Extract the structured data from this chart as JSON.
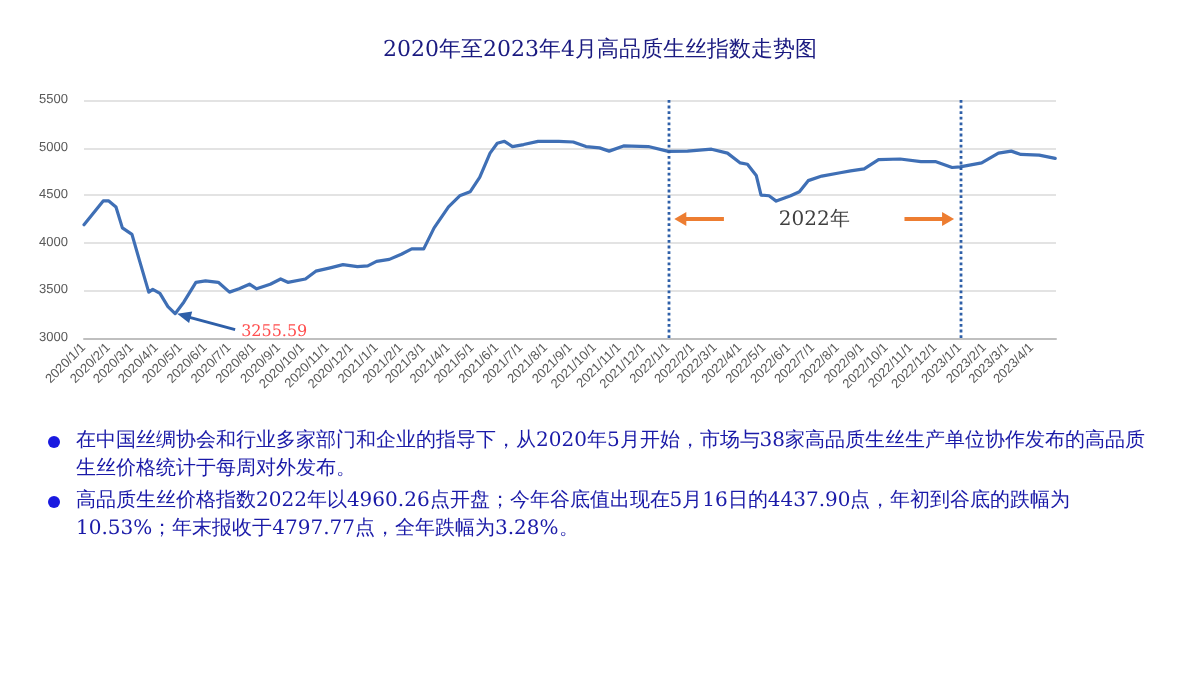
{
  "chart_data": {
    "type": "line",
    "title": "2020年至2023年4月高品质生丝指数走势图",
    "x": [
      "2020-01-01",
      "2020-01-25",
      "2020-02-01",
      "2020-02-10",
      "2020-02-18",
      "2020-03-01",
      "2020-03-10",
      "2020-03-22",
      "2020-03-27",
      "2020-04-05",
      "2020-04-15",
      "2020-04-24",
      "2020-05-05",
      "2020-05-20",
      "2020-06-01",
      "2020-06-17",
      "2020-07-01",
      "2020-07-13",
      "2020-07-26",
      "2020-08-04",
      "2020-08-21",
      "2020-09-03",
      "2020-09-12",
      "2020-10-04",
      "2020-10-17",
      "2020-11-04",
      "2020-11-20",
      "2020-12-08",
      "2020-12-21",
      "2021-01-01",
      "2021-01-17",
      "2021-02-01",
      "2021-02-14",
      "2021-03-01",
      "2021-03-14",
      "2021-04-01",
      "2021-04-15",
      "2021-04-28",
      "2021-05-10",
      "2021-05-23",
      "2021-06-01",
      "2021-06-10",
      "2021-06-20",
      "2021-07-04",
      "2021-07-22",
      "2021-08-17",
      "2021-09-04",
      "2021-09-20",
      "2021-10-07",
      "2021-10-19",
      "2021-11-06",
      "2021-12-07",
      "2022-01-01",
      "2022-01-25",
      "2022-02-24",
      "2022-03-16",
      "2022-04-01",
      "2022-04-10",
      "2022-04-21",
      "2022-04-27",
      "2022-05-07",
      "2022-05-16",
      "2022-06-03",
      "2022-06-14",
      "2022-06-25",
      "2022-07-12",
      "2022-08-04",
      "2022-08-17",
      "2022-09-03",
      "2022-09-21",
      "2022-10-18",
      "2022-11-13",
      "2022-12-01",
      "2022-12-22",
      "2023-01-01",
      "2023-01-28",
      "2023-02-18",
      "2023-03-06",
      "2023-03-18",
      "2023-04-10",
      "2023-04-30"
    ],
    "series": [
      {
        "color": "#3f6fb5",
        "values": [
          4190,
          4440,
          4440,
          4377,
          4157,
          4088,
          3826,
          3482,
          3510,
          3468,
          3330,
          3255.59,
          3379,
          3585,
          3600,
          3585,
          3482,
          3517,
          3565,
          3517,
          3565,
          3620,
          3585,
          3620,
          3702,
          3737,
          3771,
          3750,
          3757,
          3805,
          3826,
          3880,
          3936,
          3936,
          4157,
          4377,
          4494,
          4536,
          4687,
          4942,
          5045,
          5066,
          5011,
          5032,
          5066,
          5066,
          5059,
          5011,
          4997,
          4963,
          5018,
          5011,
          4960.26,
          4963,
          4983,
          4942,
          4839,
          4825,
          4708,
          4501,
          4494,
          4437.9,
          4494,
          4536,
          4653,
          4701,
          4736,
          4756,
          4777,
          4873,
          4880,
          4853,
          4853,
          4791,
          4797.77,
          4839,
          4942,
          4963,
          4928,
          4921,
          4887
        ]
      }
    ],
    "xlim": [
      "2020-01-01",
      "2023-05-01"
    ],
    "xticks": [
      {
        "value": "2020-01-01",
        "label": "2020/1/1"
      },
      {
        "value": "2020-02-01",
        "label": "2020/2/1"
      },
      {
        "value": "2020-03-01",
        "label": "2020/3/1"
      },
      {
        "value": "2020-04-01",
        "label": "2020/4/1"
      },
      {
        "value": "2020-05-01",
        "label": "2020/5/1"
      },
      {
        "value": "2020-06-01",
        "label": "2020/6/1"
      },
      {
        "value": "2020-07-01",
        "label": "2020/7/1"
      },
      {
        "value": "2020-08-01",
        "label": "2020/8/1"
      },
      {
        "value": "2020-09-01",
        "label": "2020/9/1"
      },
      {
        "value": "2020-10-01",
        "label": "2020/10/1"
      },
      {
        "value": "2020-11-01",
        "label": "2020/11/1"
      },
      {
        "value": "2020-12-01",
        "label": "2020/12/1"
      },
      {
        "value": "2021-01-01",
        "label": "2021/1/1"
      },
      {
        "value": "2021-02-01",
        "label": "2021/2/1"
      },
      {
        "value": "2021-03-01",
        "label": "2021/3/1"
      },
      {
        "value": "2021-04-01",
        "label": "2021/4/1"
      },
      {
        "value": "2021-05-01",
        "label": "2021/5/1"
      },
      {
        "value": "2021-06-01",
        "label": "2021/6/1"
      },
      {
        "value": "2021-07-01",
        "label": "2021/7/1"
      },
      {
        "value": "2021-08-01",
        "label": "2021/8/1"
      },
      {
        "value": "2021-09-01",
        "label": "2021/9/1"
      },
      {
        "value": "2021-10-01",
        "label": "2021/10/1"
      },
      {
        "value": "2021-11-01",
        "label": "2021/11/1"
      },
      {
        "value": "2021-12-01",
        "label": "2021/12/1"
      },
      {
        "value": "2022-01-01",
        "label": "2022/1/1"
      },
      {
        "value": "2022-02-01",
        "label": "2022/2/1"
      },
      {
        "value": "2022-03-01",
        "label": "2022/3/1"
      },
      {
        "value": "2022-04-01",
        "label": "2022/4/1"
      },
      {
        "value": "2022-05-01",
        "label": "2022/5/1"
      },
      {
        "value": "2022-06-01",
        "label": "2022/6/1"
      },
      {
        "value": "2022-07-01",
        "label": "2022/7/1"
      },
      {
        "value": "2022-08-01",
        "label": "2022/8/1"
      },
      {
        "value": "2022-09-01",
        "label": "2022/9/1"
      },
      {
        "value": "2022-10-01",
        "label": "2022/10/1"
      },
      {
        "value": "2022-11-01",
        "label": "2022/11/1"
      },
      {
        "value": "2022-12-01",
        "label": "2022/12/1"
      },
      {
        "value": "2023-01-01",
        "label": "2023/1/1"
      },
      {
        "value": "2023-02-01",
        "label": "2023/2/1"
      },
      {
        "value": "2023-03-01",
        "label": "2023/3/1"
      },
      {
        "value": "2023-04-01",
        "label": "2023/4/1"
      }
    ],
    "ylim": [
      3000,
      5500
    ],
    "yticks": [
      3000,
      3500,
      4000,
      4500,
      5000,
      5500
    ],
    "grid": "y",
    "marker": "none",
    "line_style": "solid",
    "ref_lines": [
      {
        "axis": "x",
        "value": "2022-01-01",
        "color": "#2e5fa8",
        "line_style": "dotted"
      },
      {
        "axis": "x",
        "value": "2023-01-01",
        "color": "#2e5fa8",
        "line_style": "dotted"
      }
    ],
    "annotations": [
      {
        "text": "3255.59",
        "x": "2020-04-24",
        "y": 3255.59
      },
      "2022年",
      "在中国丝绸协会和行业多家部门和企业的指导下，从2020年5月开始，市场与38家高品质生丝生产单位协作发布的高品质生丝价格统计于每周对外发布。",
      "高品质生丝价格指数2022年以4960.26点开盘；今年谷底值出现在5月16日的4437.90点，年初到谷底的跌幅为10.53%；年末报收于4797.77点，全年跌幅为3.28%。"
    ]
  }
}
